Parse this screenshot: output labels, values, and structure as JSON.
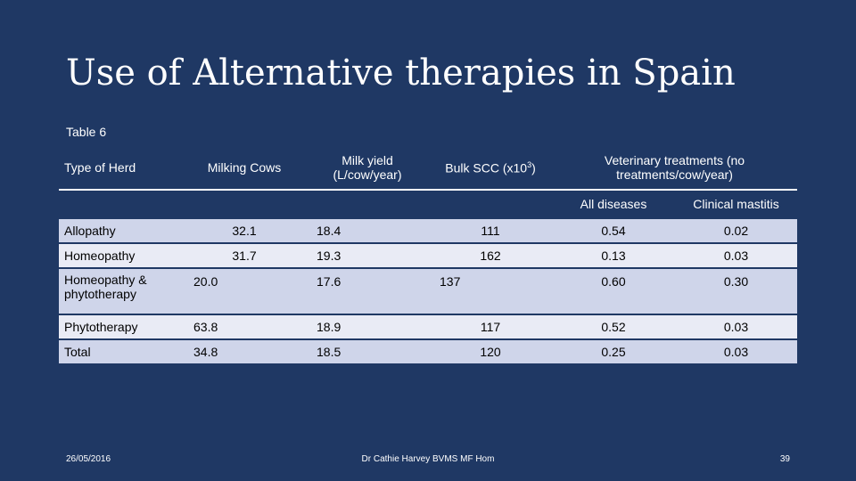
{
  "slide": {
    "title": "Use of Alternative therapies in Spain",
    "caption": "Table 6"
  },
  "table": {
    "headers": {
      "type_of_herd": "Type of Herd",
      "milking_cows": "Milking Cows",
      "milk_yield": "Milk yield (L/cow/year)",
      "bulk_scc_prefix": "Bulk SCC (x10",
      "bulk_scc_sup": "3",
      "bulk_scc_suffix": ")",
      "vet_treatments": "Veterinary treatments (no treatments/cow/year)",
      "all_diseases": "All diseases",
      "clinical_mastitis": "Clinical mastitis"
    },
    "rows": [
      {
        "type": "Allopathy",
        "cows": "32.1",
        "yield": "18.4",
        "scc": "111",
        "all": "0.54",
        "mastitis": "0.02"
      },
      {
        "type": "Homeopathy",
        "cows": "31.7",
        "yield": "19.3",
        "scc": "162",
        "all": "0.13",
        "mastitis": "0.03"
      },
      {
        "type": "Homeopathy & phytotherapy",
        "cows": "20.0",
        "yield": "17.6",
        "scc": "137",
        "all": "0.60",
        "mastitis": "0.30"
      },
      {
        "type": "Phytotherapy",
        "cows": "63.8",
        "yield": "18.9",
        "scc": "117",
        "all": "0.52",
        "mastitis": "0.03"
      },
      {
        "type": "Total",
        "cows": "34.8",
        "yield": "18.5",
        "scc": "120",
        "all": "0.25",
        "mastitis": "0.03"
      }
    ]
  },
  "footer": {
    "date": "26/05/2016",
    "author": "Dr Cathie Harvey BVMS MF Hom",
    "page": "39"
  },
  "colors": {
    "background": "#1f3864",
    "row_dark": "#cfd5ea",
    "row_light": "#e9ebf5"
  }
}
